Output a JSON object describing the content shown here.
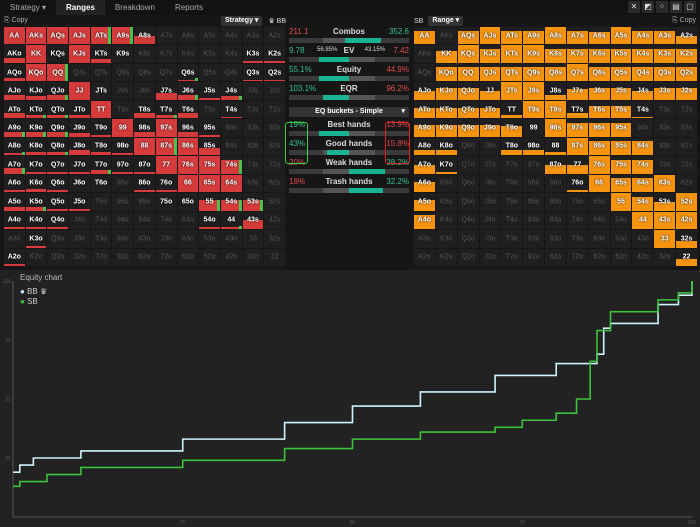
{
  "tabs": [
    {
      "label": "Strategy ▾"
    },
    {
      "label": "Ranges",
      "active": true
    },
    {
      "label": "Breakdown"
    },
    {
      "label": "Reports"
    }
  ],
  "window_icons": [
    "✕",
    "◩",
    "⁘",
    "▤",
    "▢"
  ],
  "ranks": "AKQJT98765432",
  "left": {
    "copy": "⎘ Copy",
    "mode": "Strategy ▾",
    "player": "♛ BB",
    "color": "#d63b3b",
    "freq": [
      "AAAAAA5------",
      "3A0A20-----11",
      "2AA-----1--11",
      "323A0--4312--",
      "3222A-323-1--",
      "33321A3A31---",
      "122321AAA4---",
      "3111211AAA8--",
      "12100-11AAA--",
      "2211---00666-",
      "111------115-",
      "-1-----------",
      "1------------"
    ],
    "green": [
      "0000110000000",
      "0000000000000",
      "0010000010000",
      "0010000010100",
      "0110000101010",
      "1110000000000",
      "1010000100000",
      "1000100000100",
      "0000000000000",
      "0100000001110",
      "0000000000101",
      "0000000000000",
      "0000000000000"
    ]
  },
  "right": {
    "copy": "⎘ Copy",
    "mode": "Range ▾",
    "player": "SB",
    "color": "#f7940f",
    "freq": [
      "8-8A88A87A885",
      "-7A8AA8888888",
      "-888888A88888",
      "5775AA3677577",
      "66662AA3771--",
      "777760A888---",
      "33--332A888--",
      "51----55A88--",
      "6------1A88A-",
      "6--------A85A",
      "8---------AAA",
      "-----------A4",
      "------------4"
    ]
  },
  "stats": [
    {
      "left": "211.1",
      "label": "Combos",
      "right": "352.6",
      "lc": "red",
      "rc": "grn",
      "teal": [
        0.47,
        0.77
      ]
    },
    {
      "left": "9.78",
      "lsub": "56.85%",
      "label": "EV",
      "rsub": "43.15%",
      "right": "7.42",
      "lc": "grn",
      "rc": "red",
      "teal": [
        0.25,
        0.5
      ]
    },
    {
      "left": "55.1%",
      "label": "Equity",
      "right": "44.9%",
      "lc": "grn",
      "rc": "red",
      "teal": [
        0.25,
        0.5
      ]
    },
    {
      "left": "103.1%",
      "label": "EQR",
      "right": "96.2%",
      "lc": "grn",
      "rc": "red",
      "teal": [
        0.28,
        0.5
      ]
    }
  ],
  "eq_buckets": {
    "label": "EQ buckets - Simple",
    "items": [
      {
        "left": "19%",
        "label": "Best hands",
        "right": "13.9%",
        "lc": "grn",
        "rc": "red",
        "teal": [
          0.25,
          0.5
        ]
      },
      {
        "left": "43%",
        "label": "Good hands",
        "right": "15.8%",
        "lc": "grn",
        "rc": "red",
        "teal": [
          0.32,
          0.5
        ]
      },
      {
        "left": "20%",
        "label": "Weak hands",
        "right": "38.2%",
        "lc": "red",
        "rc": "grn",
        "teal": [
          0.5,
          0.8
        ]
      },
      {
        "left": "18%",
        "label": "Trash hands",
        "right": "32.2%",
        "lc": "red",
        "rc": "grn",
        "teal": [
          0.5,
          0.78
        ]
      }
    ]
  },
  "chart_data": {
    "type": "line",
    "title": "Equity chart",
    "xlim": [
      0,
      100
    ],
    "ylim": [
      0,
      100
    ],
    "xticks": [
      "25",
      "50",
      "75",
      "100"
    ],
    "yticks": [
      "25",
      "50",
      "75",
      "100"
    ],
    "series": [
      {
        "name": "BB ♛",
        "color": "#cdf3ff",
        "points": [
          [
            0,
            19
          ],
          [
            1,
            22
          ],
          [
            3,
            25
          ],
          [
            10,
            28
          ],
          [
            25,
            33
          ],
          [
            40,
            40
          ],
          [
            50,
            47
          ],
          [
            60,
            53
          ],
          [
            71,
            60
          ],
          [
            80,
            65
          ],
          [
            86,
            69
          ],
          [
            87,
            80
          ],
          [
            88,
            82
          ],
          [
            95,
            90
          ],
          [
            98,
            94
          ],
          [
            100,
            100
          ]
        ]
      },
      {
        "name": "SB",
        "color": "#3cc23c",
        "points": [
          [
            0,
            13
          ],
          [
            1,
            15
          ],
          [
            5,
            18
          ],
          [
            10,
            21
          ],
          [
            25,
            24
          ],
          [
            40,
            29
          ],
          [
            50,
            33
          ],
          [
            60,
            36
          ],
          [
            71,
            38
          ],
          [
            75,
            41
          ],
          [
            80,
            44
          ],
          [
            83,
            50
          ],
          [
            85,
            66
          ],
          [
            86,
            79
          ],
          [
            88,
            87
          ],
          [
            95,
            92
          ],
          [
            98,
            95
          ],
          [
            100,
            100
          ]
        ]
      }
    ]
  }
}
